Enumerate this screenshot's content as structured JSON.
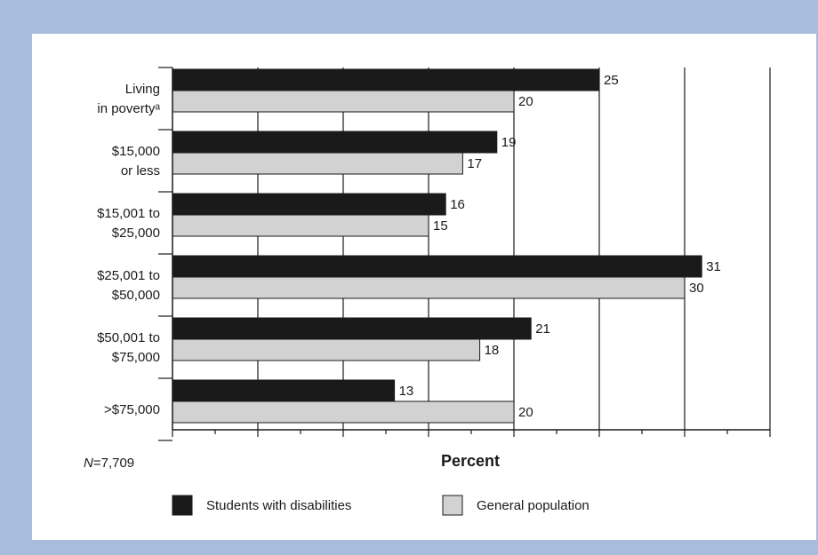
{
  "chart_data": {
    "type": "bar",
    "orientation": "horizontal",
    "categories": [
      [
        "Living",
        "in povertyᵃ"
      ],
      [
        "$15,000",
        "or less"
      ],
      [
        "$15,001 to",
        "$25,000"
      ],
      [
        "$25,001 to",
        "$50,000"
      ],
      [
        "$50,001 to",
        "$75,000"
      ],
      [
        ">$75,000"
      ]
    ],
    "series": [
      {
        "name": "Students with disabilities",
        "color": "#1a1a1a",
        "values": [
          25,
          19,
          16,
          31,
          21,
          13
        ]
      },
      {
        "name": "General population",
        "color": "#d2d2d2",
        "values": [
          20,
          17,
          15,
          30,
          18,
          20
        ]
      }
    ],
    "xlabel": "Percent",
    "xlim": [
      0,
      35
    ],
    "grid_step": 5,
    "grid": true,
    "legend_position": "bottom",
    "note": "N=7,709"
  }
}
